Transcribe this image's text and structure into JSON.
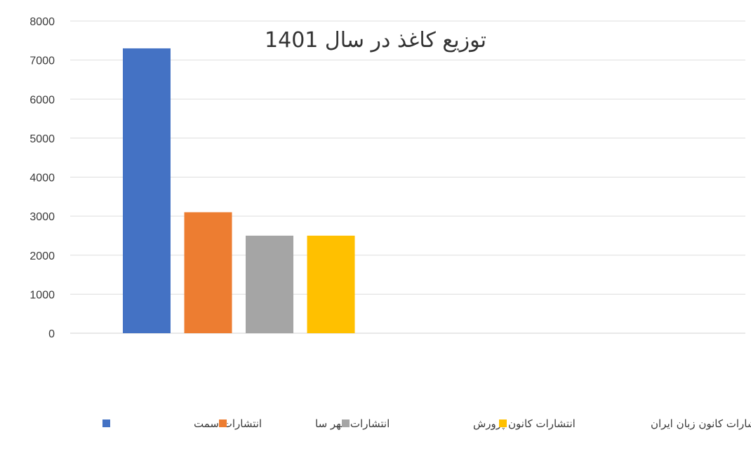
{
  "chart_data": {
    "type": "bar",
    "title": "توزیع کاغذ در سال 1401",
    "xlabel": "",
    "ylabel": "",
    "ylim": [
      0,
      8000
    ],
    "yticks": [
      0,
      1000,
      2000,
      3000,
      4000,
      5000,
      6000,
      7000,
      8000
    ],
    "grid": true,
    "legend_position": "bottom",
    "series": [
      {
        "name": "انتشارات سمت",
        "value": 7300,
        "color": "#4472C4"
      },
      {
        "name": "انتشارات مهر سا",
        "value": 3100,
        "color": "#ED7D31"
      },
      {
        "name": "انتشارات کانون پرورش",
        "value": 2500,
        "color": "#A5A5A5"
      },
      {
        "name": "انتشارات کانون زبان ایران",
        "value": 2500,
        "color": "#FFC000"
      }
    ]
  }
}
